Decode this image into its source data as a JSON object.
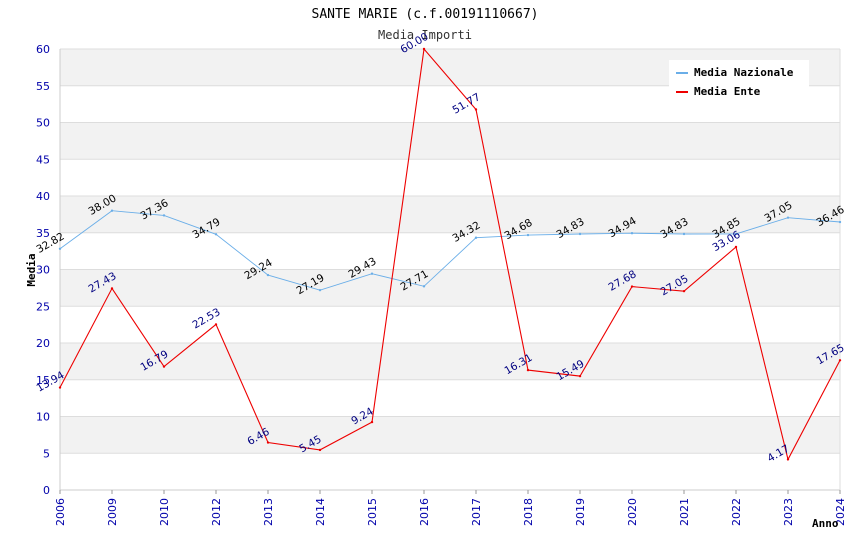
{
  "chart_data": {
    "type": "line",
    "title": "SANTE MARIE (c.f.00191110667)",
    "subtitle": "Media Importi",
    "xlabel": "Anno",
    "ylabel": "Media",
    "ylim": [
      0,
      60
    ],
    "yticks": [
      0,
      5,
      10,
      15,
      20,
      25,
      30,
      35,
      40,
      45,
      50,
      55,
      60
    ],
    "categories": [
      "2006",
      "2009",
      "2010",
      "2012",
      "2013",
      "2014",
      "2015",
      "2016",
      "2017",
      "2018",
      "2019",
      "2020",
      "2021",
      "2022",
      "2023",
      "2024"
    ],
    "legend_position": "top-right",
    "grid": true,
    "series": [
      {
        "name": "Media Nazionale",
        "color": "#6aaee8",
        "label_color": "#000000",
        "values": [
          32.82,
          38.0,
          37.36,
          34.79,
          29.24,
          27.19,
          29.43,
          27.71,
          34.32,
          34.68,
          34.83,
          34.94,
          34.83,
          34.85,
          37.05,
          36.46
        ],
        "labels": [
          "32.82",
          "38.00",
          "37.36",
          "34.79",
          "29.24",
          "27.19",
          "29.43",
          "27.71",
          "34.32",
          "34.68",
          "34.83",
          "34.94",
          "34.83",
          "34.85",
          "37.05",
          "36.46"
        ]
      },
      {
        "name": "Media Ente",
        "color": "#ee0000",
        "label_color": "#000080",
        "values": [
          13.94,
          27.43,
          16.79,
          22.53,
          6.46,
          5.45,
          9.24,
          60.0,
          51.77,
          16.31,
          15.49,
          27.68,
          27.05,
          33.06,
          4.17,
          17.65
        ],
        "labels": [
          "13.94",
          "27.43",
          "16.79",
          "22.53",
          "6.46",
          "5.45",
          "9.24",
          "60.00",
          "51.77",
          "16.31",
          "15.49",
          "27.68",
          "27.05",
          "33.06",
          "4.17",
          "17.65"
        ]
      }
    ]
  }
}
